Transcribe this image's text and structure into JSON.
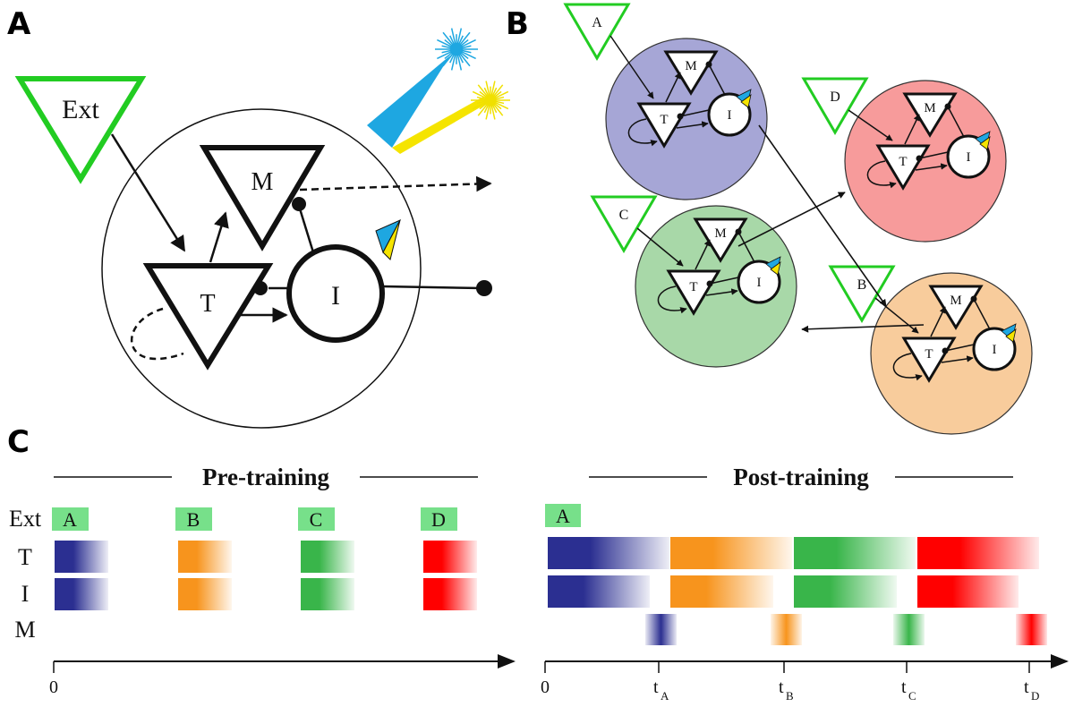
{
  "panels": {
    "a": "A",
    "b": "B",
    "c": "C"
  },
  "panel_a": {
    "ext_label": "Ext",
    "m_label": "M",
    "t_label": "T",
    "i_label": "I"
  },
  "panel_b": {
    "modules": [
      {
        "ext": "A",
        "m": "M",
        "t": "T",
        "i": "I",
        "color": "#a6a6d6"
      },
      {
        "ext": "D",
        "m": "M",
        "t": "T",
        "i": "I",
        "color": "#f79b9b"
      },
      {
        "ext": "C",
        "m": "M",
        "t": "T",
        "i": "I",
        "color": "#a8d8a8"
      },
      {
        "ext": "B",
        "m": "M",
        "t": "T",
        "i": "I",
        "color": "#f8cc9c"
      }
    ]
  },
  "panel_c": {
    "pre_title": "Pre-training",
    "post_title": "Post-training",
    "row_labels": [
      "Ext",
      "T",
      "I",
      "M"
    ],
    "pre_stimuli": [
      "A",
      "B",
      "C",
      "D"
    ],
    "post_stimuli": [
      "A"
    ],
    "pre_axis_ticks": [
      "0"
    ],
    "post_axis_ticks": [
      {
        "t": "t",
        "sub": ""
      },
      {
        "t": "t",
        "sub": "A"
      },
      {
        "t": "t",
        "sub": "B"
      },
      {
        "t": "t",
        "sub": "C"
      },
      {
        "t": "t",
        "sub": "D"
      }
    ],
    "post_zero": "0",
    "colors": {
      "A": "#2b2f91",
      "B": "#f7941d",
      "C": "#39b54a",
      "D": "#ff0000",
      "stimulus_box": "#77e08a",
      "ext_green": "#22cc22"
    }
  }
}
